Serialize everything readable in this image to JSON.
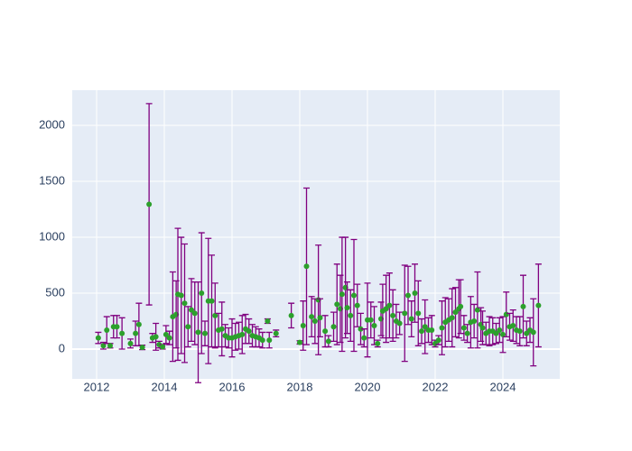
{
  "chart_data": {
    "type": "scatter",
    "x": [
      2012.05,
      2012.2,
      2012.3,
      2012.4,
      2012.5,
      2012.6,
      2012.75,
      2013.0,
      2013.15,
      2013.25,
      2013.35,
      2013.55,
      2013.65,
      2013.75,
      2013.85,
      2013.95,
      2014.05,
      2014.15,
      2014.25,
      2014.35,
      2014.4,
      2014.5,
      2014.6,
      2014.7,
      2014.8,
      2014.9,
      2015.0,
      2015.1,
      2015.2,
      2015.3,
      2015.4,
      2015.5,
      2015.6,
      2015.7,
      2015.8,
      2015.9,
      2016.0,
      2016.1,
      2016.2,
      2016.3,
      2016.4,
      2016.5,
      2016.6,
      2016.7,
      2016.8,
      2016.9,
      2017.05,
      2017.1,
      2017.3,
      2017.75,
      2018.0,
      2018.1,
      2018.2,
      2018.35,
      2018.45,
      2018.55,
      2018.6,
      2018.75,
      2018.85,
      2019.0,
      2019.1,
      2019.2,
      2019.25,
      2019.35,
      2019.4,
      2019.5,
      2019.6,
      2019.7,
      2019.8,
      2019.9,
      2020.0,
      2020.1,
      2020.2,
      2020.3,
      2020.4,
      2020.45,
      2020.55,
      2020.65,
      2020.75,
      2020.85,
      2020.95,
      2021.1,
      2021.2,
      2021.3,
      2021.4,
      2021.5,
      2021.6,
      2021.7,
      2021.8,
      2021.9,
      2022.0,
      2022.1,
      2022.2,
      2022.3,
      2022.4,
      2022.5,
      2022.6,
      2022.7,
      2022.75,
      2022.85,
      2022.95,
      2023.05,
      2023.15,
      2023.25,
      2023.35,
      2023.4,
      2023.5,
      2023.6,
      2023.7,
      2023.8,
      2023.9,
      2024.0,
      2024.1,
      2024.2,
      2024.3,
      2024.4,
      2024.5,
      2024.6,
      2024.7,
      2024.8,
      2024.9,
      2025.05
    ],
    "values": [
      100,
      30,
      170,
      30,
      200,
      200,
      140,
      50,
      140,
      220,
      15,
      1295,
      100,
      110,
      40,
      20,
      130,
      100,
      290,
      310,
      490,
      480,
      410,
      200,
      350,
      320,
      150,
      500,
      140,
      430,
      430,
      300,
      170,
      180,
      120,
      100,
      100,
      110,
      120,
      130,
      180,
      160,
      120,
      110,
      100,
      80,
      250,
      80,
      140,
      300,
      60,
      210,
      740,
      290,
      250,
      440,
      280,
      160,
      70,
      200,
      400,
      360,
      490,
      550,
      370,
      300,
      480,
      390,
      180,
      100,
      260,
      260,
      210,
      50,
      270,
      340,
      360,
      390,
      300,
      250,
      230,
      320,
      480,
      270,
      500,
      320,
      160,
      200,
      170,
      170,
      50,
      80,
      190,
      240,
      260,
      280,
      330,
      360,
      380,
      190,
      140,
      240,
      250,
      350,
      220,
      190,
      140,
      160,
      160,
      140,
      170,
      130,
      310,
      200,
      210,
      170,
      160,
      380,
      140,
      170,
      150,
      390
    ],
    "error": [
      50,
      30,
      120,
      20,
      100,
      100,
      140,
      40,
      110,
      190,
      20,
      900,
      40,
      120,
      30,
      20,
      80,
      60,
      400,
      300,
      590,
      520,
      530,
      180,
      280,
      280,
      450,
      540,
      110,
      560,
      410,
      290,
      150,
      240,
      100,
      90,
      170,
      120,
      120,
      170,
      130,
      110,
      100,
      90,
      80,
      70,
      20,
      70,
      30,
      110,
      15,
      220,
      700,
      180,
      200,
      490,
      170,
      140,
      50,
      130,
      360,
      300,
      510,
      450,
      230,
      230,
      500,
      190,
      140,
      80,
      330,
      160,
      170,
      30,
      150,
      240,
      300,
      290,
      230,
      150,
      100,
      430,
      260,
      160,
      260,
      290,
      110,
      240,
      110,
      130,
      30,
      40,
      240,
      220,
      190,
      260,
      220,
      260,
      240,
      110,
      80,
      230,
      150,
      340,
      150,
      150,
      100,
      130,
      120,
      90,
      110,
      160,
      200,
      120,
      140,
      120,
      130,
      280,
      110,
      110,
      300,
      370
    ],
    "color": "#2ca02c",
    "error_color": "#800080",
    "xlim": [
      2011.28,
      2025.68
    ],
    "ylim": [
      -266,
      2315
    ],
    "xticks": [
      2012,
      2014,
      2016,
      2018,
      2020,
      2022,
      2024
    ],
    "yticks": [
      0,
      500,
      1000,
      1500,
      2000
    ],
    "grid": true
  }
}
